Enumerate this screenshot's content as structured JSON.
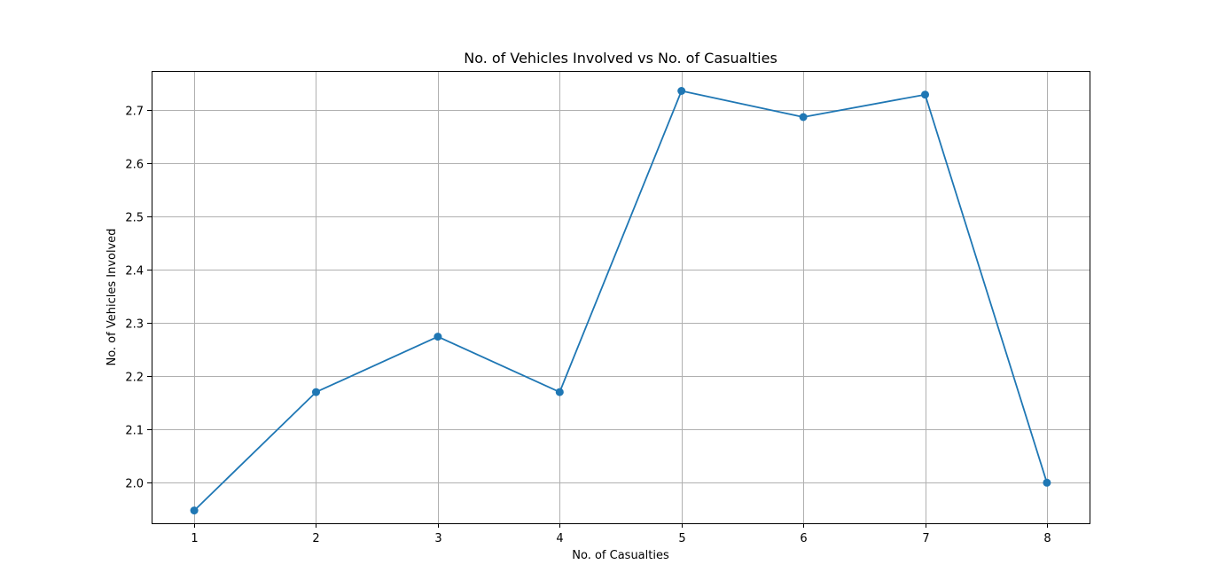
{
  "chart_data": {
    "type": "line",
    "title": "No. of Vehicles Involved vs No. of Casualties",
    "xlabel": "No. of Casualties",
    "ylabel": "No. of Vehicles Involved",
    "x": [
      1,
      2,
      3,
      4,
      5,
      6,
      7,
      8
    ],
    "series": [
      {
        "values": [
          1.948,
          2.17,
          2.274,
          2.17,
          2.735,
          2.686,
          2.728,
          2.0
        ],
        "color": "#1f77b4",
        "marker": "circle"
      }
    ],
    "xticks": [
      "1",
      "2",
      "3",
      "4",
      "5",
      "6",
      "7",
      "8"
    ],
    "yticks": [
      "2.0",
      "2.1",
      "2.2",
      "2.3",
      "2.4",
      "2.5",
      "2.6",
      "2.7"
    ],
    "xlim": [
      0.65,
      8.35
    ],
    "ylim": [
      1.924,
      2.7725
    ],
    "grid": true,
    "legend": "none"
  }
}
